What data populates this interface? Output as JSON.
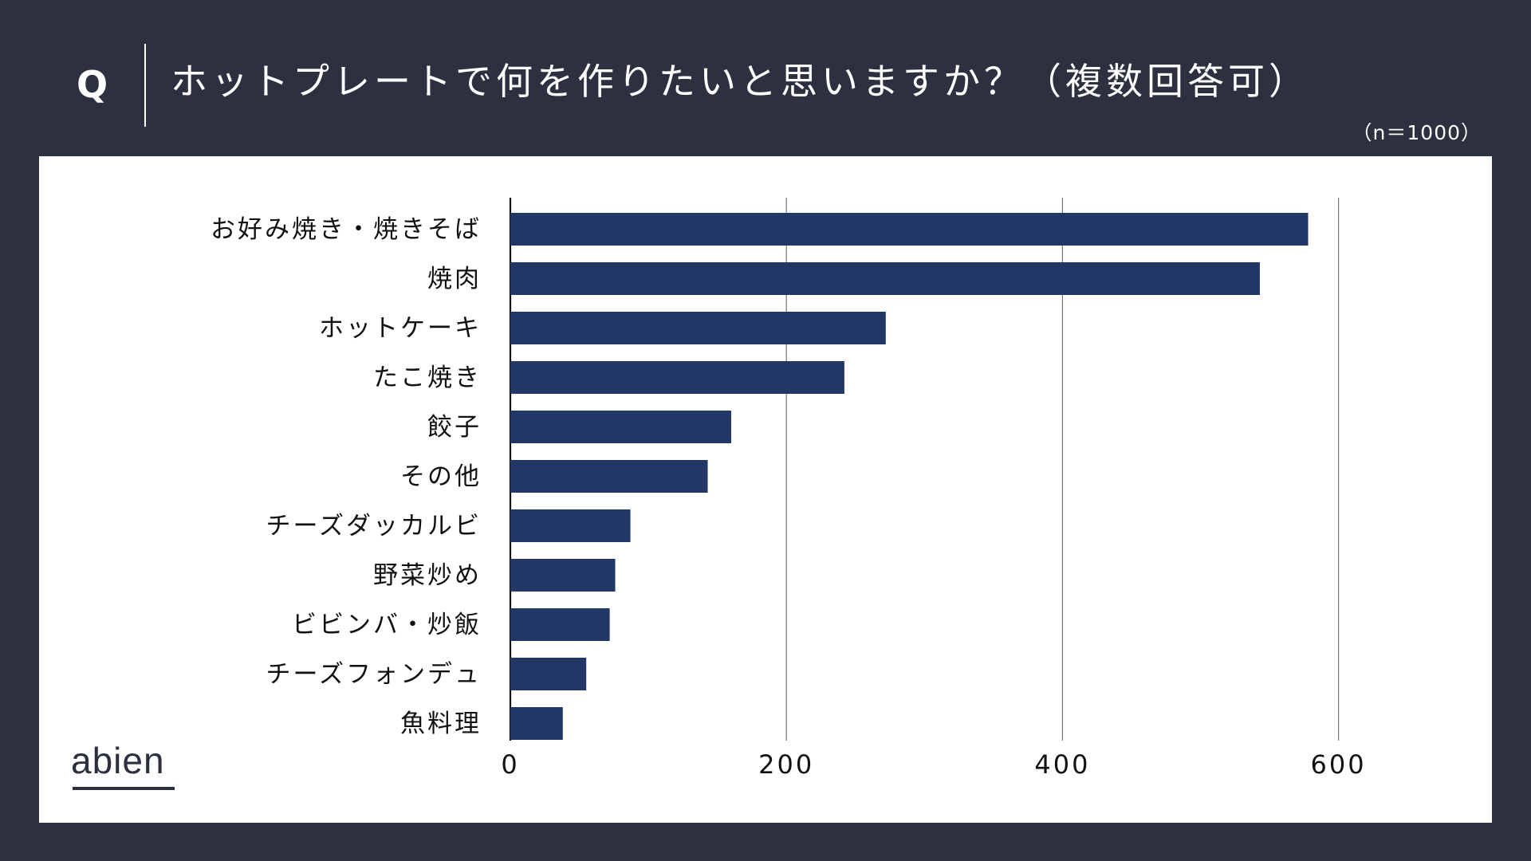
{
  "header": {
    "q_mark": "Q",
    "title": "ホットプレートで何を作りたいと思いますか？（複数回答可）",
    "sample": "（n＝1000）"
  },
  "logo": {
    "text": "abien"
  },
  "colors": {
    "background": "#2d303f",
    "panel": "#ffffff",
    "bar": "#233766",
    "grid": "#777777",
    "text": "#111111"
  },
  "chart_data": {
    "type": "bar",
    "orientation": "horizontal",
    "categories": [
      "お好み焼き・焼きそば",
      "焼肉",
      "ホットケーキ",
      "たこ焼き",
      "餃子",
      "その他",
      "チーズダッカルビ",
      "野菜炒め",
      "ビビンバ・炒飯",
      "チーズフォンデュ",
      "魚料理"
    ],
    "values": [
      578,
      543,
      272,
      242,
      160,
      143,
      87,
      76,
      72,
      55,
      38
    ],
    "xlim": [
      0,
      700
    ],
    "xticks": [
      0,
      200,
      400,
      600
    ],
    "grid": true,
    "title": "ホットプレートで何を作りたいと思いますか？（複数回答可）",
    "xlabel": "",
    "ylabel": ""
  }
}
